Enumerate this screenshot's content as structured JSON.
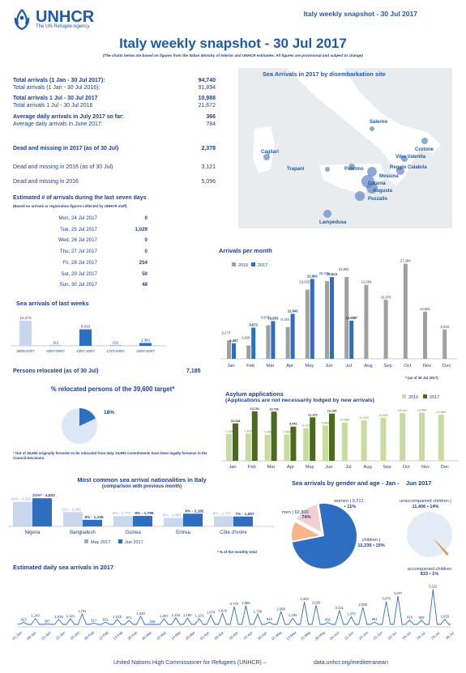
{
  "header": {
    "logo_text": "UNHCR",
    "logo_sub": "The UN Refugee Agency",
    "top_right": "Italy weekly snapshot - 30 Jul 2017",
    "title": "Italy weekly snapshot - 30 Jul 2017",
    "note": "(The charts below are based on figures from the Italian Ministry of Interior and UNHCR estimates. All figures are provisional and subject to change)"
  },
  "stats": [
    {
      "label": "Total arrivals (1 Jan - 30 Jul 2017):",
      "value": "94,740",
      "bold": true
    },
    {
      "label": "Total arrivals (1 Jan - 30 Jul 2016):",
      "value": "91,894",
      "bold": false
    },
    {
      "label": "Total arrivals 1 Jul - 30 Jul 2017",
      "value": "10,988",
      "bold": true
    },
    {
      "label": "Total arrivals 1 Jul - 30 Jul 2016",
      "value": "21,672",
      "bold": false
    },
    {
      "label": "Average daily arrivals in July 2017 so far:",
      "value": "366",
      "bold": true
    },
    {
      "label": "Average daily arrivals in June 2017:",
      "value": "784",
      "bold": false
    },
    {
      "label": "Dead and missing in 2017 (as of 30 Jul)",
      "value": "2,378",
      "bold": true
    },
    {
      "label": "Dead and missing in 2016 (as of 30 Jul)",
      "value": "3,121",
      "bold": false
    },
    {
      "label": "Dead and missing in 2016",
      "value": "5,096",
      "bold": false
    }
  ],
  "seven_days": {
    "title": "Estimated # of arrivals during the last seven days",
    "subtitle": "(Based on arrivals or registration figures collected by UNHCR staff)",
    "rows": [
      {
        "day": "Mon, 24 Jul 2017",
        "value": "0"
      },
      {
        "day": "Tue, 25 Jul 2017",
        "value": "1,029"
      },
      {
        "day": "Wed, 26 Jul 2017",
        "value": "0"
      },
      {
        "day": "Thu, 27 Jul 2017",
        "value": "0"
      },
      {
        "day": "Fri, 28 Jul 2017",
        "value": "254"
      },
      {
        "day": "Sat, 29 Jul 2017",
        "value": "50"
      },
      {
        "day": "Sun, 30 Jul 2017",
        "value": "48"
      }
    ]
  },
  "map": {
    "title": "Sea Arrivals in 2017 by disembarkation site",
    "places": [
      "Salerno",
      "Crotone",
      "Cagliari",
      "Vibo Valentia",
      "Reggio Calabria",
      "Trapani",
      "Palermo",
      "Messina",
      "Catania",
      "Augusta",
      "Pozzallo",
      "Lampedusa"
    ]
  },
  "relocated": {
    "label": "Persons relocated (as of  30 Jul)",
    "value": "7,185",
    "title": "% relocated persons of the 39,600 target*",
    "percent": 18,
    "percent_label": "18%",
    "footnote": "* Out of 39,600 originally foreseen to be relocated from Italy, 34,953 commitments have been legally foreseen in the Council Decisions."
  },
  "monthly_footnote": "* (as of 30 Jul 2017)",
  "pct_footnote": "* % of the monthly total",
  "footer": {
    "left": "United Nations High Commissioner for Refugees (UNHCR) –",
    "right": "data.unhcr.org/mediterranean"
  },
  "colors": {
    "blue": "#2e6ec0",
    "light": "#c8d7ee",
    "gray": "#a0a0a0",
    "green_dark": "#4a6a1e",
    "green_light": "#c9dca0",
    "orange": "#f08a3c"
  },
  "chart_data": [
    {
      "id": "weeks",
      "type": "bar",
      "title": "Sea arrivals of last weeks",
      "categories": [
        "26/06-02/07",
        "03/07-09/07",
        "10/07-16/07",
        "17/07-23/07",
        "24/07-30/07"
      ],
      "values": [
        12273,
        112,
        8010,
        152,
        1381
      ],
      "labels": [
        "12,273",
        "112",
        "8,010",
        "152",
        "1,381"
      ]
    },
    {
      "id": "monthly",
      "type": "bar",
      "title": "Arrivals per month",
      "categories": [
        "Jan",
        "Feb",
        "Mar",
        "Apr",
        "May",
        "Jun",
        "Jul",
        "Aug",
        "Sep",
        "Oct",
        "Nov",
        "Dec"
      ],
      "series": [
        {
          "name": "2016",
          "values": [
            5273,
            3828,
            9676,
            9149,
            19925,
            22371,
            23552,
            21294,
            16975,
            27384,
            13581,
            8428
          ],
          "labels": [
            "5,273",
            "3,828",
            "9,676",
            "9,149",
            "19,925",
            "22,371",
            "23,552",
            "21,294",
            "16,975",
            "27,384",
            "13,581",
            "8,428"
          ]
        },
        {
          "name": "2017",
          "values": [
            4467,
            8972,
            10853,
            12943,
            22993,
            23524,
            10988,
            null,
            null,
            null,
            null,
            null
          ],
          "labels": [
            "4,467",
            "8,972",
            "10,853",
            "12,943",
            "22,993",
            "23,524",
            "10,988*",
            "",
            "",
            "",
            "",
            ""
          ]
        }
      ]
    },
    {
      "id": "asylum",
      "type": "bar",
      "title": "Asylum applications",
      "subtitle": "(Applications are not necessarily lodged by new arrivals)",
      "categories": [
        "Jan",
        "Feb",
        "Mar",
        "Apr",
        "May",
        "Jun",
        "Jul",
        "Aug",
        "Sep",
        "Oct",
        "Nov",
        "Dec"
      ],
      "series": [
        {
          "name": "2016",
          "values": [
            7415,
            7610,
            7305,
            7360,
            9125,
            9860,
            10690,
            11315,
            11990,
            13340,
            13450,
            12880
          ],
          "labels": [
            "7,415",
            "7,610",
            "7,305",
            "7,360",
            "9,125",
            "9,860",
            "10,690",
            "11,315",
            "11,990",
            "13,340",
            "13,450",
            "12,880"
          ]
        },
        {
          "name": "2017",
          "values": [
            10418,
            13791,
            13706,
            9541,
            12123,
            13165,
            null,
            null,
            null,
            null,
            null,
            null
          ],
          "labels": [
            "10,418",
            "13,791",
            "13,706",
            "9,541",
            "12,123",
            "13,165",
            "",
            "",
            "",
            "",
            "",
            ""
          ]
        }
      ]
    },
    {
      "id": "nationalities",
      "type": "bar",
      "title": "Most common sea arrival nationalities in Italy",
      "subtitle": "(comparison with previous month)",
      "categories": [
        "Nigeria",
        "Bangladesh",
        "Guinea",
        "Eritrea",
        "Côte d'Ivoire"
      ],
      "series": [
        {
          "name": "May 2017",
          "values": [
            4202,
            2461,
            1778,
            1450,
            1737
          ],
          "labels": [
            "18% - 4,202",
            "11% - 2,461",
            "8% - 1,778",
            "6% - 1,450",
            "8% - 1,737"
          ]
        },
        {
          "name": "Jun 2017",
          "values": [
            4832,
            1135,
            1799,
            2182,
            1697
          ],
          "labels": [
            "21%* - 4,832",
            "5% - 1,135",
            "8% - 1,799",
            "9% - 2,182",
            "7% - 1,697"
          ]
        }
      ]
    },
    {
      "id": "gender",
      "type": "pie",
      "title": "Sea arrivals by gender and age - Jan -",
      "title2": "Jun 2017",
      "slices": [
        {
          "name": "men",
          "value": 62300,
          "label": "men | 62,300 • 74%"
        },
        {
          "name": "women",
          "value": 9213,
          "label": "women | 9,213 • 11%"
        },
        {
          "name": "children",
          "value": 12239,
          "label": "children | 12,239 • 15%"
        }
      ],
      "children_split": [
        {
          "name": "unaccompanied children",
          "value": 11406,
          "label": "unaccompanied children | 11,406 • 14%"
        },
        {
          "name": "accompanied children",
          "value": 833,
          "label": "accompanied children | 833 • 1%"
        }
      ]
    },
    {
      "id": "daily",
      "type": "line",
      "title": "Estimated daily sea arrivals in 2017",
      "x": [
        "01-Jan",
        "08-Jan",
        "15-Jan",
        "22-Jan",
        "29-Jan",
        "05-Feb",
        "12-Feb",
        "19-Feb",
        "26-Feb",
        "05-Mar",
        "12-Mar",
        "19-Mar",
        "26-Mar",
        "02-Apr",
        "09-Apr",
        "16-Apr",
        "23-Apr",
        "30-Apr",
        "07-May",
        "14-May",
        "21-May",
        "28-May",
        "04-Jun",
        "11-Jun",
        "18-Jun",
        "25-Jun",
        "02-Jul",
        "09-Jul",
        "16-Jul",
        "23-Jul",
        "30-Jul"
      ],
      "peaks": [
        623,
        1143,
        397,
        1019,
        1121,
        1741,
        517,
        631,
        1015,
        871,
        1440,
        346,
        1087,
        1215,
        1190,
        1133,
        1574,
        1819,
        2775,
        2885,
        1738,
        643,
        2068,
        1194,
        3402,
        2926,
        592,
        2211,
        1370,
        2658,
        651,
        3476,
        4207,
        916,
        909,
        5115,
        1029
      ],
      "peak_labels": [
        "623",
        "1,143",
        "397",
        "1,019",
        "1,121",
        "1,741",
        "517",
        "631",
        "1,015",
        "871",
        "1,440",
        "346",
        "1,087",
        "1,215",
        "1,190",
        "1,133",
        "1,574",
        "1,819",
        "2,775",
        "2,885",
        "1,738",
        "643",
        "2,068",
        "1,194",
        "3,402",
        "2,926",
        "592",
        "2,211",
        "1,370",
        "2,658",
        "651",
        "3,476",
        "4,207",
        "916",
        "909",
        "5,115",
        "1,029"
      ]
    }
  ]
}
